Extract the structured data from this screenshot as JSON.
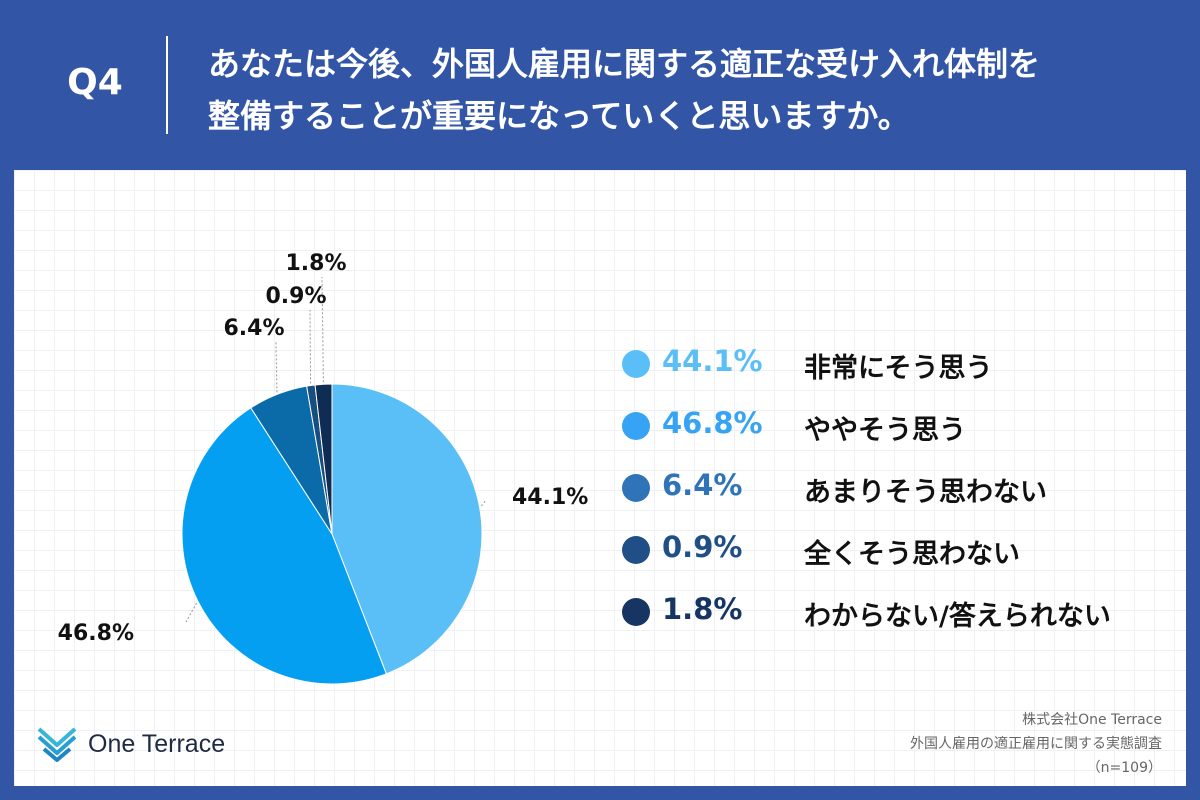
{
  "header": {
    "question_label": "Q4",
    "question_line1": "あなたは今後、外国人雇用に関する適正な受け入れ体制を",
    "question_line2": "整備することが重要になっていくと思いますか。"
  },
  "chart_data": {
    "type": "pie",
    "title": "",
    "categories": [
      "非常にそう思う",
      "ややそう思う",
      "あまりそう思わない",
      "全くそう思わない",
      "わからない/答えられない"
    ],
    "values": [
      44.1,
      46.8,
      6.4,
      0.9,
      1.8
    ],
    "labels": [
      "44.1%",
      "46.8%",
      "6.4%",
      "0.9%",
      "1.8%"
    ],
    "colors": [
      "#5bbff7",
      "#059ff2",
      "#0b6aa8",
      "#174f80",
      "#0f2c55"
    ],
    "direction": "clockwise",
    "start": "12 o'clock",
    "legend_position": "right"
  },
  "legend": {
    "items": [
      {
        "pct": "44.1%",
        "name": "非常にそう思う",
        "color": "#5bbff7"
      },
      {
        "pct": "46.8%",
        "name": "ややそう思う",
        "color": "#36a3f5"
      },
      {
        "pct": "6.4%",
        "name": "あまりそう思わない",
        "color": "#2f74b9"
      },
      {
        "pct": "0.9%",
        "name": "全くそう思わない",
        "color": "#1f4f86"
      },
      {
        "pct": "1.8%",
        "name": "わからない/答えられない",
        "color": "#163563"
      }
    ]
  },
  "logo": {
    "text": "One Terrace",
    "icon": "one-terrace-logo-icon"
  },
  "source": {
    "line1": "株式会社One Terrace",
    "line2": "外国人雇用の適正雇用に関する実態調査",
    "line3": "（n=109）"
  },
  "colors": {
    "header_bg": "#3355a6",
    "panel_bg": "#ffffff"
  }
}
